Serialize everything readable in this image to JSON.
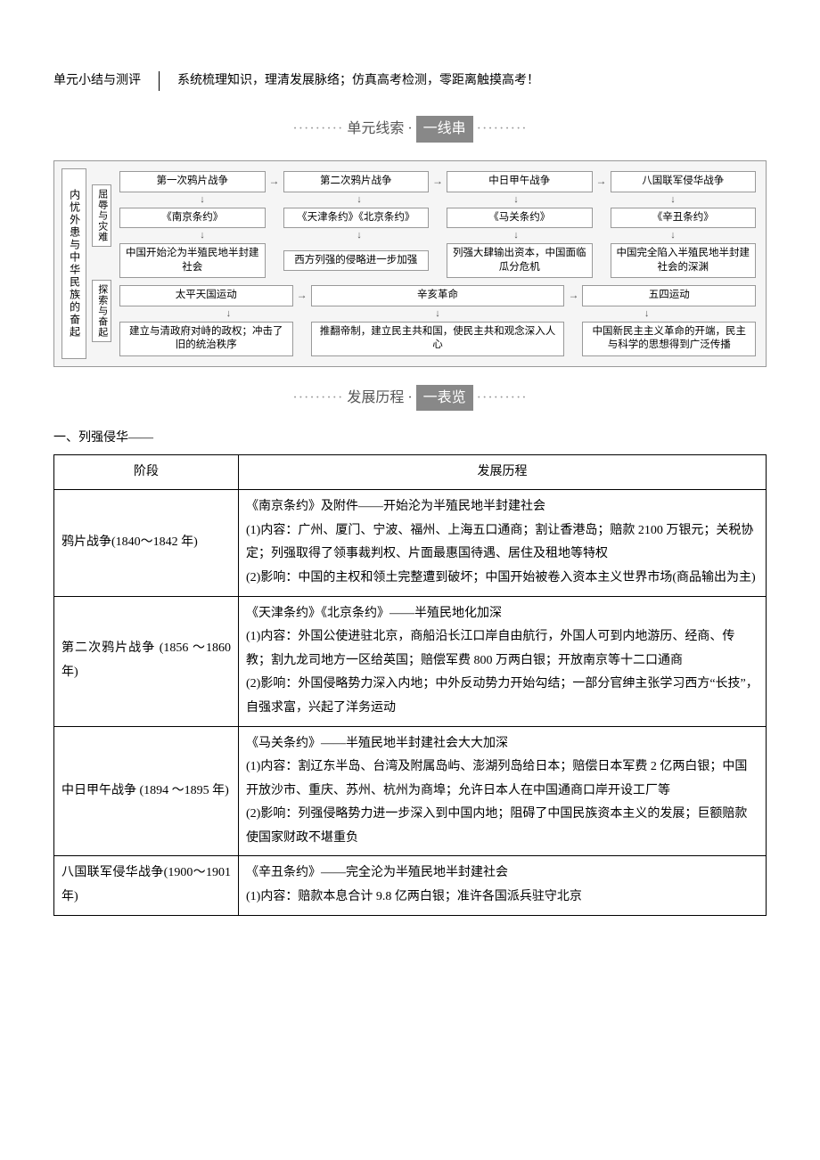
{
  "header": {
    "left": "单元小结与测评",
    "right": "系统梳理知识，理清发展脉络；仿真高考检测，零距离触摸高考！"
  },
  "banner1": {
    "prefix": "单元线索 · ",
    "pill": "一线串"
  },
  "banner2": {
    "prefix": "发展历程 · ",
    "pill": "一表览"
  },
  "flowchart": {
    "left_label": "内忧外患与中华民族的奋起",
    "sub": [
      "屈辱与灾难",
      "探索与奋起"
    ],
    "top_block": {
      "row1": [
        "第一次鸦片战争",
        "第二次鸦片战争",
        "中日甲午战争",
        "八国联军侵华战争"
      ],
      "row2": [
        "《南京条约》",
        "《天津条约》《北京条约》",
        "《马关条约》",
        "《辛丑条约》"
      ],
      "row3": [
        "中国开始沦为半殖民地半封建社会",
        "西方列强的侵略进一步加强",
        "列强大肆输出资本，中国面临瓜分危机",
        "中国完全陷入半殖民地半封建社会的深渊"
      ]
    },
    "bottom_block": {
      "row1": [
        "太平天国运动",
        "辛亥革命",
        "五四运动"
      ],
      "row2": [
        "建立与清政府对峙的政权；冲击了旧的统治秩序",
        "推翻帝制，建立民主共和国，使民主共和观念深入人心",
        "中国新民主主义革命的开端，民主与科学的思想得到广泛传播"
      ]
    }
  },
  "subtitle": "一、列强侵华——",
  "table": {
    "headers": [
      "阶段",
      "发展历程"
    ],
    "rows": [
      {
        "stage": "鸦片战争(1840～1842 年)",
        "content": "《南京条约》及附件——开始沦为半殖民地半封建社会\n(1)内容：广州、厦门、宁波、福州、上海五口通商；割让香港岛；赔款 2100 万银元；关税协定；列强取得了领事裁判权、片面最惠国待遇、居住及租地等特权\n(2)影响：中国的主权和领土完整遭到破坏；中国开始被卷入资本主义世界市场(商品输出为主)"
      },
      {
        "stage": "第二次鸦片战争 (1856 ～1860 年)",
        "content": "《天津条约》《北京条约》——半殖民地化加深\n(1)内容：外国公使进驻北京，商船沿长江口岸自由航行，外国人可到内地游历、经商、传教；割九龙司地方一区给英国；赔偿军费 800 万两白银；开放南京等十二口通商\n(2)影响：外国侵略势力深入内地；中外反动势力开始勾结；一部分官绅主张学习西方“长技”，自强求富，兴起了洋务运动"
      },
      {
        "stage": "中日甲午战争 (1894 ～1895 年)",
        "content": "《马关条约》——半殖民地半封建社会大大加深\n(1)内容：割辽东半岛、台湾及附属岛屿、澎湖列岛给日本；赔偿日本军费 2 亿两白银；中国开放沙市、重庆、苏州、杭州为商埠；允许日本人在中国通商口岸开设工厂等\n(2)影响：列强侵略势力进一步深入到中国内地；阻碍了中国民族资本主义的发展；巨额赔款使国家财政不堪重负"
      },
      {
        "stage": "八国联军侵华战争(1900～1901 年)",
        "content": "《辛丑条约》——完全沦为半殖民地半封建社会\n(1)内容：赔款本息合计 9.8 亿两白银；准许各国派兵驻守北京"
      }
    ]
  }
}
